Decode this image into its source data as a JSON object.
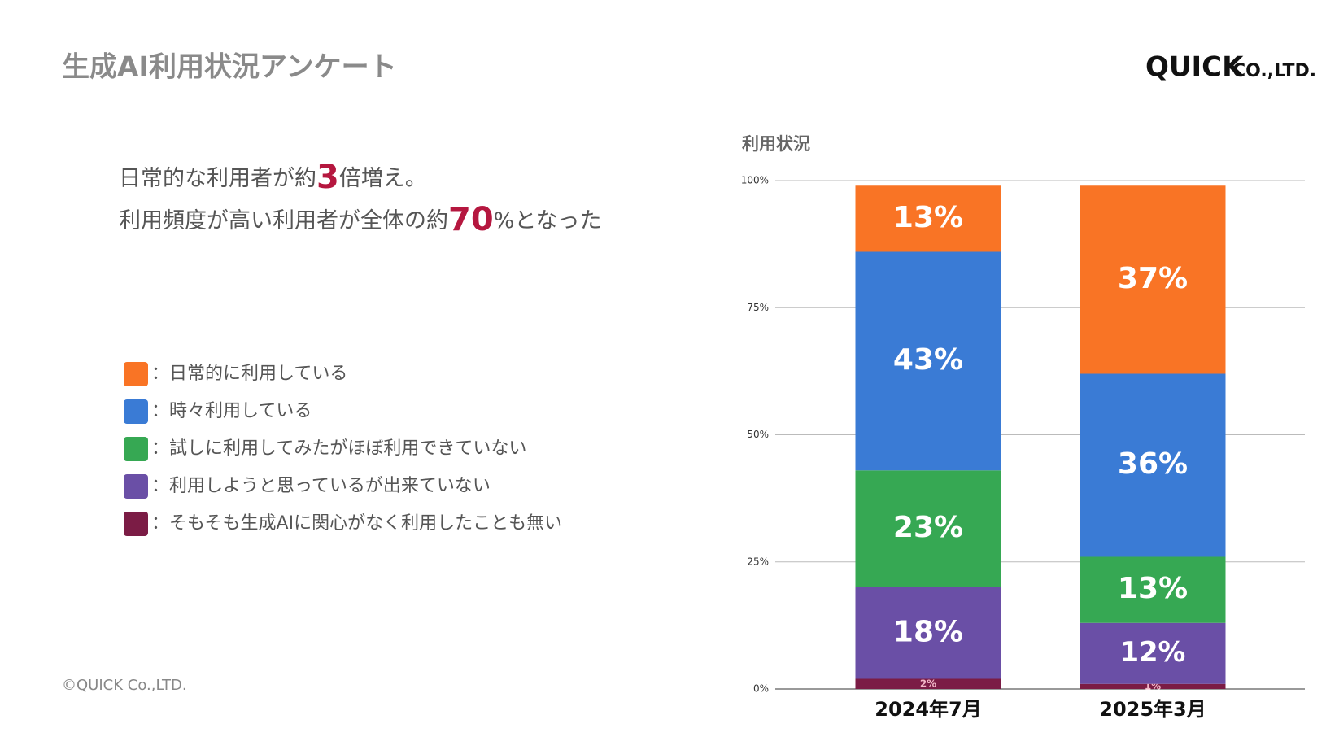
{
  "title": "生成AI利用状況アンケート",
  "logo": "QUICK",
  "logo_suffix": "CO.,LTD.",
  "footer": "©QUICK Co.,LTD.",
  "headline": [
    [
      "日常的な利用者が約",
      "3",
      "倍増え。"
    ],
    [
      "利用頻度が高い利用者が全体の約",
      "70",
      "%となった"
    ]
  ],
  "chart_data": {
    "type": "stacked_bar",
    "title": "利用状況",
    "categories": [
      "2024年7月",
      "2025年3月"
    ],
    "series": [
      {
        "name": "：日常的に利用している",
        "color": "#f97425",
        "values": [
          13,
          37
        ],
        "value_labels": [
          "13%",
          "37%"
        ]
      },
      {
        "name": "：時々利用している",
        "color": "#3a7bd5",
        "values": [
          43,
          36
        ],
        "value_labels": [
          "43%",
          "36%"
        ]
      },
      {
        "name": "：試しに利用してみたがほぼ利用できていない",
        "color": "#36a853",
        "values": [
          23,
          13
        ],
        "value_labels": [
          "23%",
          "13%"
        ]
      },
      {
        "name": "：利用しようと思っているが出来ていない",
        "color": "#6a4fa6",
        "values": [
          18,
          12
        ],
        "value_labels": [
          "18%",
          "12%"
        ]
      },
      {
        "name": "：そもそも生成AIに関心がなく利用したことも無い",
        "color": "#7b1c45",
        "values": [
          2,
          1
        ],
        "value_labels": [
          "2%",
          "1%"
        ]
      }
    ],
    "ylim": [
      0,
      100
    ],
    "yticks": [
      {
        "value": 0,
        "label": "0%"
      },
      {
        "value": 25,
        "label": "25%"
      },
      {
        "value": 50,
        "label": "50%"
      },
      {
        "value": 75,
        "label": "75%"
      },
      {
        "value": 100,
        "label": "100%"
      }
    ],
    "grid": true
  }
}
